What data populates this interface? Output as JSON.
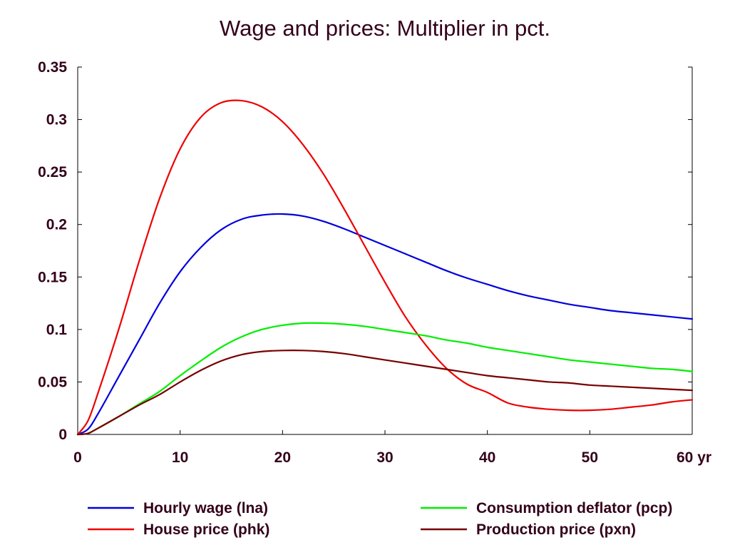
{
  "chart_data": {
    "type": "line",
    "title": "Wage and prices: Multiplier in pct.",
    "xlabel": "",
    "ylabel": "",
    "xlim": [
      0,
      60
    ],
    "ylim": [
      0,
      0.35
    ],
    "x_ticks": [
      "0",
      "10",
      "20",
      "30",
      "40",
      "50",
      "60 yr"
    ],
    "x_tick_values": [
      0,
      10,
      20,
      30,
      40,
      50,
      60
    ],
    "y_ticks": [
      "0",
      "0.05",
      "0.1",
      "0.15",
      "0.2",
      "0.25",
      "0.3",
      "0.35"
    ],
    "y_tick_values": [
      0,
      0.05,
      0.1,
      0.15,
      0.2,
      0.25,
      0.3,
      0.35
    ],
    "grid": false,
    "legend_position": "bottom",
    "x": [
      0,
      1,
      2,
      4,
      6,
      8,
      10,
      12,
      14,
      16,
      18,
      20,
      22,
      24,
      26,
      28,
      30,
      32,
      34,
      36,
      38,
      40,
      42,
      44,
      46,
      48,
      50,
      52,
      54,
      56,
      58,
      60
    ],
    "series": [
      {
        "name": "Hourly wage (lna)",
        "color": "#0000dd",
        "values": [
          0,
          0.005,
          0.02,
          0.055,
          0.09,
          0.125,
          0.155,
          0.178,
          0.195,
          0.205,
          0.209,
          0.21,
          0.208,
          0.203,
          0.196,
          0.188,
          0.18,
          0.172,
          0.164,
          0.156,
          0.149,
          0.143,
          0.137,
          0.132,
          0.128,
          0.124,
          0.121,
          0.118,
          0.116,
          0.114,
          0.112,
          0.11
        ]
      },
      {
        "name": "House price (phk)",
        "color": "#ee0000",
        "values": [
          0,
          0.013,
          0.04,
          0.1,
          0.165,
          0.225,
          0.272,
          0.302,
          0.316,
          0.318,
          0.312,
          0.298,
          0.276,
          0.248,
          0.215,
          0.18,
          0.145,
          0.112,
          0.085,
          0.063,
          0.048,
          0.04,
          0.03,
          0.026,
          0.024,
          0.023,
          0.023,
          0.024,
          0.026,
          0.028,
          0.031,
          0.033
        ]
      },
      {
        "name": "Consumption deflator (pcp)",
        "color": "#00ee00",
        "values": [
          0,
          0.001,
          0.006,
          0.017,
          0.029,
          0.041,
          0.056,
          0.07,
          0.083,
          0.093,
          0.1,
          0.104,
          0.106,
          0.106,
          0.105,
          0.103,
          0.1,
          0.097,
          0.094,
          0.09,
          0.087,
          0.083,
          0.08,
          0.077,
          0.074,
          0.071,
          0.069,
          0.067,
          0.065,
          0.063,
          0.062,
          0.06
        ]
      },
      {
        "name": "Production price (pxn)",
        "color": "#770000",
        "values": [
          0,
          0.001,
          0.006,
          0.017,
          0.028,
          0.038,
          0.05,
          0.061,
          0.07,
          0.076,
          0.079,
          0.08,
          0.08,
          0.079,
          0.077,
          0.074,
          0.071,
          0.068,
          0.065,
          0.062,
          0.059,
          0.056,
          0.054,
          0.052,
          0.05,
          0.049,
          0.047,
          0.046,
          0.045,
          0.044,
          0.043,
          0.042
        ]
      }
    ]
  }
}
